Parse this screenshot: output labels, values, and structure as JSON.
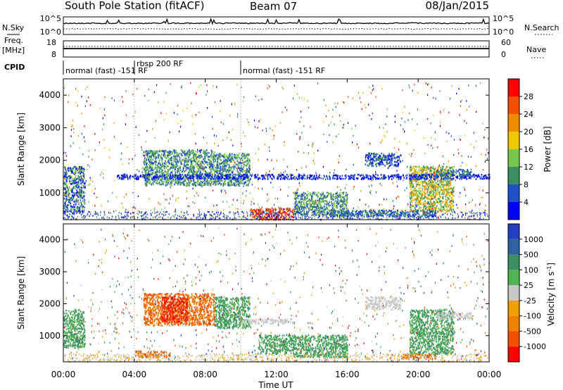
{
  "chart_data": {
    "type": "heatmap",
    "title": "South Pole Station (fitACF)",
    "beam": "Beam 07",
    "date": "08/Jan/2015",
    "xlabel": "Time UT",
    "x_ticks": [
      "00:00",
      "04:00",
      "08:00",
      "12:00",
      "16:00",
      "20:00",
      "00:00"
    ],
    "xlim_hours": [
      0,
      24
    ],
    "top_panels": {
      "nsky": {
        "label": "N.Sky",
        "ticks": [
          "10^5",
          "10^0"
        ]
      },
      "nsearch": {
        "label": "N.Search",
        "ticks": [
          "10^5",
          "10^0"
        ]
      },
      "freq": {
        "label": "Freq.",
        "unit": "[MHz]",
        "ticks": [
          "18",
          "8"
        ]
      },
      "nave": {
        "label": "Nave",
        "ticks": [
          "60",
          "0"
        ]
      },
      "cpid": {
        "label": "CPID",
        "segments": [
          {
            "start_hour": 0.0,
            "text": "normal (fast) -151 RF"
          },
          {
            "start_hour": 4.0,
            "text": "rbsp 200 RF"
          },
          {
            "start_hour": 10.0,
            "text": "normal (fast) -151 RF"
          }
        ]
      }
    },
    "power_panel": {
      "ylabel": "Slant Range [km]",
      "y_ticks": [
        1000,
        2000,
        3000,
        4000
      ],
      "ylim": [
        180,
        4500
      ],
      "colorbar": {
        "label": "Power [dB]",
        "ticks": [
          "4",
          "8",
          "12",
          "16",
          "20",
          "24",
          "28"
        ],
        "colors": [
          "#0000ff",
          "#1e50c8",
          "#3c8c64",
          "#78c850",
          "#f0c800",
          "#f08c00",
          "#f05000",
          "#ff0000"
        ]
      }
    },
    "velocity_panel": {
      "ylabel": "Slant Range [km]",
      "y_ticks": [
        1000,
        2000,
        3000,
        4000
      ],
      "ylim": [
        180,
        4500
      ],
      "colorbar": {
        "label": "Velocity [m s^-1]",
        "ticks": [
          "1000",
          "500",
          "100",
          "25",
          "-25",
          "-100",
          "-500",
          "-1000"
        ],
        "colors": [
          "#2040c0",
          "#3060a0",
          "#3c8c64",
          "#50b450",
          "#c8c8c8",
          "#f0a000",
          "#f08000",
          "#f05000",
          "#ff0000"
        ]
      }
    }
  }
}
